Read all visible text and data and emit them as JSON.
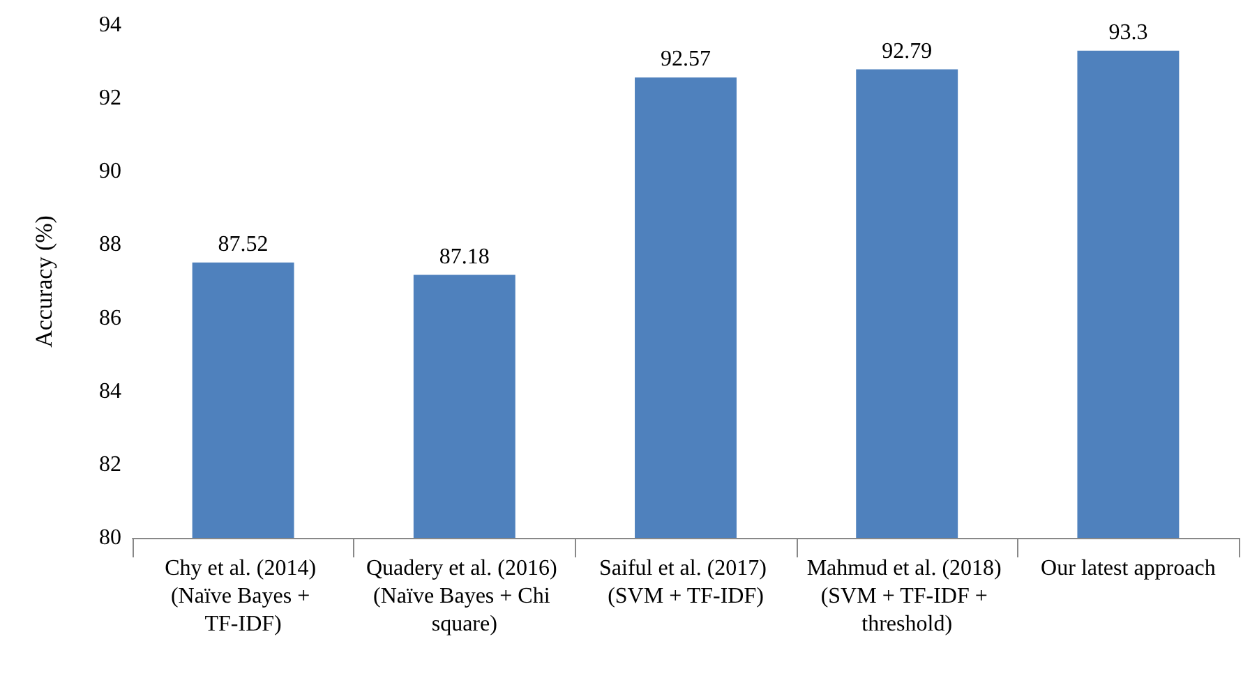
{
  "chart_data": {
    "type": "bar",
    "ylabel": "Accuracy (%)",
    "categories": [
      "Chy et al. (2014) (Naïve Bayes + TF-IDF)",
      "Quadery et al. (2016) (Naïve Bayes + Chi square)",
      "Saiful et al. (2017) (SVM + TF-IDF)",
      "Mahmud et al. (2018) (SVM + TF-IDF + threshold)",
      "Our latest approach"
    ],
    "values": [
      87.52,
      87.18,
      92.57,
      92.79,
      93.3
    ],
    "color": "#4f81bd",
    "ylim": [
      80,
      94
    ],
    "yticks": [
      80,
      82,
      84,
      86,
      88,
      90,
      92,
      94
    ],
    "grid": false,
    "data_labels": true
  }
}
